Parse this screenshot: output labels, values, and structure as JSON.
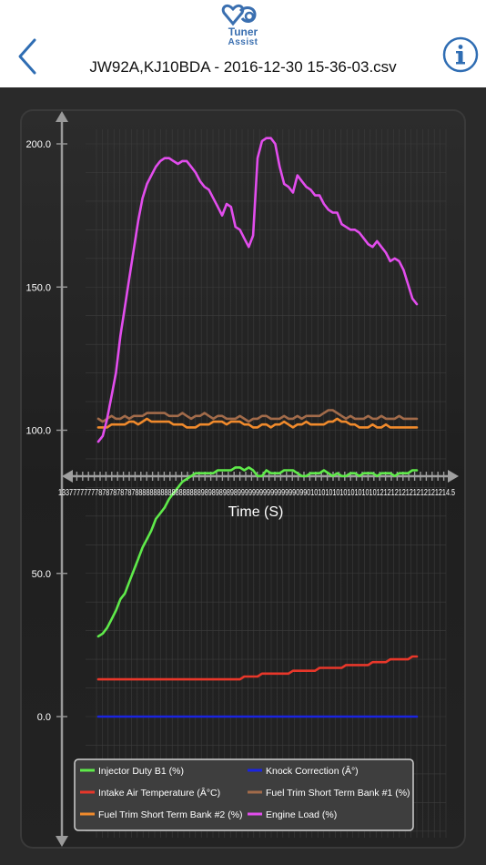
{
  "header": {
    "logo_title": "Tuner",
    "logo_subtitle": "Assist",
    "file_title": "JW92A,KJ10BDA - 2016-12-30 15-36-03.csv"
  },
  "colors": {
    "injector": "#5fea4a",
    "intake": "#e8372a",
    "knock": "#1a24e0",
    "fuel1": "#a26b4a",
    "fuel2": "#f08a2c",
    "engine": "#e24ded",
    "accent": "#2f6db3"
  },
  "chart_data": {
    "type": "line",
    "xlabel": "Time (S)",
    "ylabel": "",
    "ylim": [
      -45,
      210
    ],
    "y_ticks": [
      "200.0",
      "150.0",
      "100.0",
      "50.0",
      "0.0"
    ],
    "y_tick_values": [
      200,
      150,
      100,
      50,
      0
    ],
    "x_tick_labels_visible": "13377777777878787878788888888888888888898989898989999999999999999099010101010101010101012121212121212121214.5",
    "x": [
      0,
      1,
      2,
      3,
      4,
      5,
      6,
      7,
      8,
      9,
      10,
      11,
      12,
      13,
      14,
      15,
      16,
      17,
      18,
      19,
      20,
      21,
      22,
      23,
      24,
      25,
      26,
      27,
      28,
      29,
      30,
      31,
      32,
      33,
      34,
      35,
      36,
      37,
      38,
      39,
      40,
      41,
      42,
      43,
      44,
      45,
      46,
      47,
      48,
      49,
      50,
      51,
      52,
      53,
      54,
      55,
      56,
      57,
      58,
      59,
      60,
      61,
      62,
      63,
      64,
      65,
      66,
      67,
      68,
      69,
      70,
      71,
      72
    ],
    "series": [
      {
        "name": "Injector Duty B1 (%)",
        "color": "#5fea4a",
        "values": [
          28,
          29,
          31,
          34,
          37,
          41,
          43,
          47,
          51,
          55,
          59,
          62,
          65,
          69,
          71,
          73,
          76,
          78,
          80,
          82,
          83,
          84,
          85,
          85,
          85,
          85,
          85,
          86,
          86,
          86,
          86,
          87,
          87,
          86,
          87,
          86,
          84,
          84,
          86,
          85,
          85,
          85,
          86,
          86,
          86,
          85,
          84,
          84,
          85,
          85,
          85,
          86,
          85,
          84,
          85,
          84,
          84,
          85,
          85,
          84,
          85,
          85,
          85,
          84,
          85,
          85,
          85,
          84,
          85,
          85,
          85,
          86,
          86
        ]
      },
      {
        "name": "Knock Correction (Â°)",
        "color": "#1a24e0",
        "values": [
          0,
          0,
          0,
          0,
          0,
          0,
          0,
          0,
          0,
          0,
          0,
          0,
          0,
          0,
          0,
          0,
          0,
          0,
          0,
          0,
          0,
          0,
          0,
          0,
          0,
          0,
          0,
          0,
          0,
          0,
          0,
          0,
          0,
          0,
          0,
          0,
          0,
          0,
          0,
          0,
          0,
          0,
          0,
          0,
          0,
          0,
          0,
          0,
          0,
          0,
          0,
          0,
          0,
          0,
          0,
          0,
          0,
          0,
          0,
          0,
          0,
          0,
          0,
          0,
          0,
          0,
          0,
          0,
          0,
          0,
          0,
          0,
          0
        ]
      },
      {
        "name": "Intake Air Temperature (Â°C)",
        "color": "#e8372a",
        "values": [
          13,
          13,
          13,
          13,
          13,
          13,
          13,
          13,
          13,
          13,
          13,
          13,
          13,
          13,
          13,
          13,
          13,
          13,
          13,
          13,
          13,
          13,
          13,
          13,
          13,
          13,
          13,
          13,
          13,
          13,
          13,
          13,
          13,
          14,
          14,
          14,
          14,
          15,
          15,
          15,
          15,
          15,
          15,
          15,
          16,
          16,
          16,
          16,
          16,
          16,
          17,
          17,
          17,
          17,
          17,
          17,
          18,
          18,
          18,
          18,
          18,
          18,
          19,
          19,
          19,
          19,
          20,
          20,
          20,
          20,
          20,
          21,
          21
        ]
      },
      {
        "name": "Fuel Trim Short Term Bank #1 (%)",
        "color": "#a26b4a",
        "values": [
          104,
          103,
          104,
          105,
          104,
          104,
          105,
          104,
          105,
          105,
          105,
          106,
          106,
          106,
          106,
          106,
          105,
          105,
          105,
          106,
          105,
          104,
          105,
          105,
          106,
          105,
          104,
          105,
          105,
          104,
          104,
          104,
          105,
          104,
          103,
          104,
          104,
          105,
          105,
          104,
          104,
          104,
          105,
          104,
          104,
          105,
          104,
          105,
          105,
          105,
          105,
          106,
          107,
          107,
          106,
          105,
          104,
          105,
          104,
          104,
          104,
          105,
          104,
          104,
          105,
          104,
          104,
          104,
          105,
          104,
          104,
          104,
          104
        ]
      },
      {
        "name": "Fuel Trim Short Term Bank #2 (%)",
        "color": "#f08a2c",
        "values": [
          101,
          101,
          101,
          102,
          102,
          102,
          102,
          103,
          103,
          102,
          103,
          104,
          103,
          103,
          103,
          103,
          103,
          102,
          102,
          102,
          101,
          101,
          101,
          102,
          102,
          102,
          103,
          103,
          103,
          102,
          103,
          103,
          103,
          102,
          102,
          101,
          101,
          102,
          102,
          101,
          102,
          102,
          103,
          102,
          101,
          102,
          102,
          103,
          102,
          102,
          102,
          102,
          103,
          103,
          104,
          103,
          103,
          102,
          102,
          101,
          101,
          101,
          102,
          101,
          101,
          102,
          101,
          101,
          101,
          101,
          101,
          101,
          101
        ]
      },
      {
        "name": "Engine Load (%)",
        "color": "#e24ded",
        "values": [
          96,
          98,
          104,
          112,
          120,
          133,
          143,
          153,
          163,
          173,
          181,
          186,
          189,
          192,
          194,
          195,
          195,
          194,
          193,
          194,
          194,
          192,
          190,
          187,
          185,
          184,
          181,
          178,
          175,
          179,
          178,
          171,
          170,
          167,
          164,
          168,
          195,
          201,
          202,
          202,
          200,
          192,
          186,
          185,
          183,
          189,
          187,
          185,
          184,
          182,
          182,
          179,
          177,
          176,
          176,
          172,
          171,
          170,
          170,
          169,
          167,
          165,
          164,
          166,
          164,
          162,
          159,
          160,
          159,
          156,
          151,
          146,
          144
        ]
      }
    ],
    "legend": {
      "placement": "bottom-left",
      "entries": [
        {
          "label": "Injector Duty B1 (%)",
          "color": "#5fea4a"
        },
        {
          "label": "Knock Correction (Â°)",
          "color": "#1a24e0"
        },
        {
          "label": "Intake Air Temperature (Â°C)",
          "color": "#e8372a"
        },
        {
          "label": "Fuel Trim Short Term Bank #1 (%)",
          "color": "#a26b4a"
        },
        {
          "label": "Fuel Trim Short Term Bank #2 (%)",
          "color": "#f08a2c"
        },
        {
          "label": "Engine Load (%)",
          "color": "#e24ded"
        }
      ]
    },
    "grid": true
  }
}
